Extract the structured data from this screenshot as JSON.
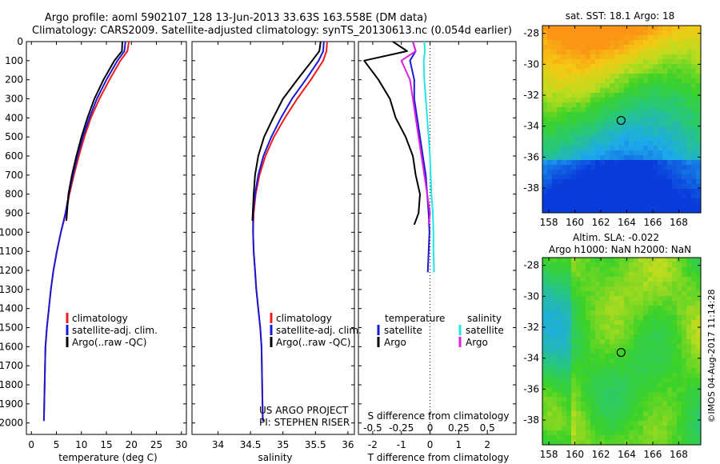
{
  "header": {
    "line1": "Argo profile: aoml 5902107_128 13-Jun-2013 33.63S 163.558E (DM data)",
    "line2": "Climatology: CARS2009. Satellite-adjusted climatology: synTS_20130613.nc (0.054d earlier)"
  },
  "colors": {
    "climatology": "#ee1c1c",
    "satellite": "#1a1ad6",
    "argo": "#000000",
    "sal_satellite": "#22e6e6",
    "sal_argo": "#dd22dd"
  },
  "depth_ticks": [
    0,
    100,
    200,
    300,
    400,
    500,
    600,
    700,
    800,
    900,
    1000,
    1100,
    1200,
    1300,
    1400,
    1500,
    1600,
    1700,
    1800,
    1900,
    2000
  ],
  "legend_main": [
    "climatology",
    "satellite-adj. clim.",
    "Argo(..raw -QC)"
  ],
  "legend_diff": {
    "temperature_title": "temperature",
    "salinity_title": "salinity",
    "items": [
      "satellite",
      "Argo",
      "satellite",
      "Argo"
    ]
  },
  "project_note": {
    "line1": "US ARGO PROJECT",
    "line2": "PI: STEPHEN RISER"
  },
  "diff_top_axis_label": "S difference from climatology",
  "sst_title": "sat. SST: 18.1 Argo: 18",
  "sla_title": {
    "line1": "Altim. SLA: -0.022",
    "line2": "Argo h1000: NaN h2000: NaN"
  },
  "footer_side": "©IMOS 04-Aug-2017 11:14:28",
  "map_lat_ticks": [
    "-28",
    "-30",
    "-32",
    "-34",
    "-36",
    "-38"
  ],
  "map_lon_ticks": [
    "158",
    "160",
    "162",
    "164",
    "166",
    "168"
  ],
  "chart_data": [
    {
      "type": "line",
      "xlabel": "temperature (deg C)",
      "ylabel": "",
      "xlim": [
        -1,
        31
      ],
      "ylim": [
        2060,
        0
      ],
      "xticks": [
        0,
        5,
        10,
        15,
        20,
        25,
        30
      ],
      "series": [
        {
          "name": "climatology",
          "x": [
            19.5,
            19.2,
            17.8,
            15.6,
            13.6,
            11.9,
            10.6,
            9.5,
            8.5,
            7.6,
            6.9,
            5.9,
            5.1,
            4.4,
            3.9,
            3.5,
            3.1,
            2.8,
            2.5
          ],
          "y": [
            0,
            50,
            100,
            200,
            300,
            400,
            500,
            600,
            700,
            800,
            900,
            1000,
            1100,
            1200,
            1300,
            1400,
            1500,
            1600,
            1980
          ]
        },
        {
          "name": "satellite-adj. clim.",
          "x": [
            18.8,
            18.6,
            17.2,
            15.0,
            13.1,
            11.6,
            10.3,
            9.2,
            8.3,
            7.5,
            6.8,
            5.9,
            5.1,
            4.4,
            3.9,
            3.5,
            3.1,
            2.8,
            2.5
          ],
          "y": [
            0,
            50,
            100,
            200,
            300,
            400,
            500,
            600,
            700,
            800,
            900,
            1000,
            1100,
            1200,
            1300,
            1400,
            1500,
            1600,
            1990
          ]
        },
        {
          "name": "Argo(..raw -QC)",
          "x": [
            18.2,
            18.1,
            16.6,
            14.4,
            12.6,
            11.2,
            10.0,
            9.0,
            8.1,
            7.4,
            7.0
          ],
          "y": [
            0,
            50,
            100,
            200,
            300,
            400,
            500,
            600,
            700,
            800,
            940
          ]
        }
      ]
    },
    {
      "type": "line",
      "xlabel": "salinity",
      "ylabel": "",
      "xlim": [
        33.6,
        36.1
      ],
      "ylim": [
        2060,
        0
      ],
      "xticks": [
        34,
        34.5,
        35,
        35.5,
        36
      ],
      "series": [
        {
          "name": "climatology",
          "x": [
            35.68,
            35.67,
            35.62,
            35.43,
            35.22,
            35.03,
            34.86,
            34.73,
            34.64,
            34.58,
            34.55,
            34.54,
            34.55,
            34.57,
            34.59,
            34.62,
            34.65,
            34.67,
            34.69
          ],
          "y": [
            0,
            50,
            100,
            200,
            300,
            400,
            500,
            600,
            700,
            800,
            900,
            1000,
            1100,
            1200,
            1300,
            1400,
            1500,
            1600,
            1990
          ]
        },
        {
          "name": "satellite-adj. clim.",
          "x": [
            35.63,
            35.62,
            35.55,
            35.35,
            35.14,
            34.97,
            34.82,
            34.7,
            34.62,
            34.57,
            34.54,
            34.54,
            34.55,
            34.57,
            34.59,
            34.62,
            34.65,
            34.67,
            34.69
          ],
          "y": [
            0,
            50,
            100,
            200,
            300,
            400,
            500,
            600,
            700,
            800,
            900,
            1000,
            1100,
            1200,
            1300,
            1400,
            1500,
            1600,
            1990
          ]
        },
        {
          "name": "Argo(..raw -QC)",
          "x": [
            35.58,
            35.56,
            35.45,
            35.22,
            35.0,
            34.85,
            34.71,
            34.62,
            34.57,
            34.55,
            34.53
          ],
          "y": [
            0,
            50,
            100,
            200,
            300,
            400,
            500,
            600,
            700,
            800,
            940
          ]
        }
      ]
    },
    {
      "type": "line",
      "xlabel": "T difference from climatology",
      "ylabel": "",
      "xlim": [
        -2.5,
        3.0
      ],
      "ylim": [
        2060,
        0
      ],
      "xticks": [
        -2,
        -1,
        0,
        1,
        2
      ],
      "top_xticks": [
        {
          "label": "-0.5",
          "t": -2
        },
        {
          "label": "-0.25",
          "t": -1
        },
        {
          "label": "0",
          "t": 0
        },
        {
          "label": "0.25",
          "t": 1
        },
        {
          "label": "0.5",
          "t": 2
        }
      ],
      "series": [
        {
          "name": "temperature satellite",
          "x": [
            -0.6,
            -0.5,
            -0.7,
            -0.55,
            -0.55,
            -0.45,
            -0.35,
            -0.25,
            -0.15,
            -0.1,
            -0.05,
            -0.02,
            -0.05,
            -0.08
          ],
          "y": [
            0,
            50,
            100,
            200,
            300,
            400,
            500,
            600,
            700,
            800,
            900,
            1000,
            1100,
            1210
          ]
        },
        {
          "name": "temperature Argo",
          "x": [
            -1.3,
            -0.8,
            -2.3,
            -1.8,
            -1.4,
            -1.2,
            -0.85,
            -0.6,
            -0.5,
            -0.35,
            -0.4,
            -0.55
          ],
          "y": [
            0,
            50,
            100,
            200,
            300,
            400,
            500,
            600,
            700,
            800,
            900,
            960
          ]
        },
        {
          "name": "salinity satellite",
          "x": [
            -0.2,
            -0.18,
            -0.22,
            -0.2,
            -0.15,
            -0.1,
            -0.05,
            0.0,
            0.02,
            0.05,
            0.1,
            0.12,
            0.12,
            0.14
          ],
          "y": [
            0,
            50,
            100,
            200,
            300,
            400,
            500,
            600,
            700,
            800,
            900,
            1000,
            1100,
            1210
          ]
        },
        {
          "name": "salinity Argo",
          "x": [
            -0.6,
            -0.5,
            -1.0,
            -0.7,
            -0.6,
            -0.5,
            -0.4,
            -0.3,
            -0.2,
            -0.1,
            0.0,
            -0.05
          ],
          "y": [
            0,
            50,
            100,
            200,
            300,
            400,
            500,
            600,
            700,
            800,
            900,
            960
          ]
        }
      ]
    },
    {
      "type": "heatmap",
      "title": "sat. SST: 18.1 Argo: 18",
      "xlim": [
        157.5,
        169.7
      ],
      "ylim": [
        -39.6,
        -27.5
      ],
      "profile_marker": {
        "lon": 163.56,
        "lat": -33.63
      }
    },
    {
      "type": "heatmap",
      "title": "Altim. SLA: -0.022",
      "xlim": [
        157.5,
        169.7
      ],
      "ylim": [
        -39.6,
        -27.5
      ],
      "profile_marker": {
        "lon": 163.56,
        "lat": -33.63
      }
    }
  ]
}
